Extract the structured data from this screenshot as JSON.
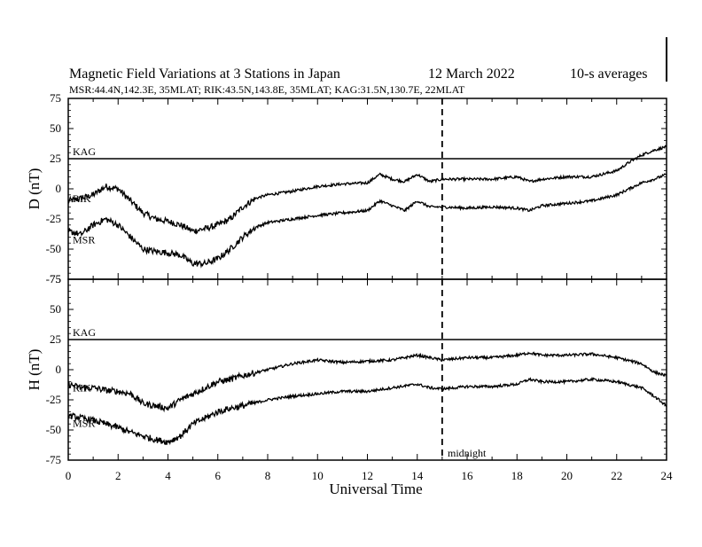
{
  "header": {
    "title": "Magnetic Field Variations at 3 Stations in Japan",
    "date": "12 March   2022",
    "averaging": "10-s averages",
    "stations": "MSR:44.4N,142.3E, 35MLAT;  RIK:43.5N,143.8E, 35MLAT;  KAG:31.5N,130.7E, 22MLAT"
  },
  "annotation": "midnight",
  "chart_data": [
    {
      "type": "line",
      "ylabel": "D (nT)",
      "xlabel": "",
      "xlim": [
        0,
        24
      ],
      "ylim": [
        -75,
        75
      ],
      "yticks": [
        "75",
        "50",
        "25",
        "0",
        "-25",
        "-50",
        "-75"
      ],
      "grid": false,
      "reference_line_y": 25,
      "vertical_marker_x": 15,
      "series": [
        {
          "name": "KAG",
          "x": [
            0,
            24
          ],
          "values": [
            25,
            25
          ]
        },
        {
          "name": "RIK",
          "x": [
            0,
            0.5,
            1,
            1.5,
            2,
            2.5,
            3,
            3.5,
            4,
            4.5,
            5,
            5.5,
            6,
            6.5,
            7,
            7.5,
            8,
            9,
            10,
            11,
            12,
            12.5,
            13,
            13.5,
            14,
            14.5,
            15,
            16,
            17,
            18,
            18.5,
            19,
            20,
            21,
            22,
            22.5,
            23,
            23.5,
            24
          ],
          "values": [
            -10,
            -8,
            -5,
            2,
            0,
            -10,
            -20,
            -25,
            -27,
            -30,
            -35,
            -33,
            -30,
            -25,
            -15,
            -8,
            -5,
            -2,
            2,
            4,
            5,
            12,
            8,
            6,
            12,
            6,
            8,
            8,
            8,
            10,
            6,
            8,
            10,
            10,
            15,
            22,
            28,
            32,
            35
          ]
        },
        {
          "name": "MSR",
          "x": [
            0,
            0.5,
            1,
            1.5,
            2,
            2.5,
            3,
            3.5,
            4,
            4.5,
            5,
            5.5,
            6,
            6.5,
            7,
            7.5,
            8,
            9,
            10,
            11,
            12,
            12.5,
            13,
            13.5,
            14,
            14.5,
            15,
            16,
            17,
            18,
            18.5,
            19,
            20,
            21,
            22,
            22.5,
            23,
            23.5,
            24
          ],
          "values": [
            -35,
            -38,
            -30,
            -25,
            -30,
            -40,
            -50,
            -52,
            -53,
            -55,
            -62,
            -62,
            -58,
            -50,
            -40,
            -32,
            -28,
            -25,
            -22,
            -20,
            -18,
            -10,
            -14,
            -18,
            -10,
            -15,
            -15,
            -16,
            -15,
            -16,
            -18,
            -14,
            -12,
            -10,
            -5,
            0,
            5,
            8,
            12
          ]
        }
      ]
    },
    {
      "type": "line",
      "ylabel": "H (nT)",
      "xlabel": "Universal Time",
      "xlim": [
        0,
        24
      ],
      "ylim": [
        -75,
        75
      ],
      "xticks": [
        "0",
        "2",
        "4",
        "6",
        "8",
        "10",
        "12",
        "14",
        "16",
        "18",
        "20",
        "22",
        "24"
      ],
      "yticks": [
        "75",
        "50",
        "25",
        "0",
        "-25",
        "-50",
        "-75"
      ],
      "grid": false,
      "reference_line_y": 25,
      "vertical_marker_x": 15,
      "series": [
        {
          "name": "KAG",
          "x": [
            0,
            24
          ],
          "values": [
            25,
            25
          ]
        },
        {
          "name": "RIK",
          "x": [
            0,
            0.5,
            1,
            1.5,
            2,
            2.5,
            3,
            3.5,
            4,
            4.5,
            5,
            5.5,
            6,
            6.5,
            7,
            8,
            9,
            10,
            11,
            12,
            13,
            14,
            14.5,
            15,
            16,
            17,
            18,
            18.5,
            19,
            20,
            21,
            22,
            23,
            23.5,
            24
          ],
          "values": [
            -12,
            -15,
            -15,
            -17,
            -18,
            -20,
            -28,
            -30,
            -32,
            -25,
            -20,
            -15,
            -10,
            -8,
            -5,
            0,
            5,
            8,
            6,
            7,
            8,
            12,
            10,
            8,
            10,
            10,
            12,
            14,
            12,
            12,
            13,
            10,
            5,
            -2,
            -5
          ]
        },
        {
          "name": "MSR",
          "x": [
            0,
            0.5,
            1,
            1.5,
            2,
            2.5,
            3,
            3.5,
            4,
            4.5,
            5,
            5.5,
            6,
            6.5,
            7,
            8,
            9,
            10,
            11,
            12,
            13,
            14,
            14.5,
            15,
            16,
            17,
            18,
            18.5,
            19,
            20,
            21,
            22,
            23,
            23.5,
            24
          ],
          "values": [
            -38,
            -40,
            -42,
            -45,
            -48,
            -52,
            -55,
            -58,
            -60,
            -55,
            -45,
            -40,
            -35,
            -32,
            -30,
            -25,
            -22,
            -20,
            -18,
            -18,
            -15,
            -12,
            -15,
            -16,
            -14,
            -14,
            -12,
            -8,
            -10,
            -10,
            -8,
            -10,
            -15,
            -22,
            -30
          ]
        }
      ]
    }
  ]
}
